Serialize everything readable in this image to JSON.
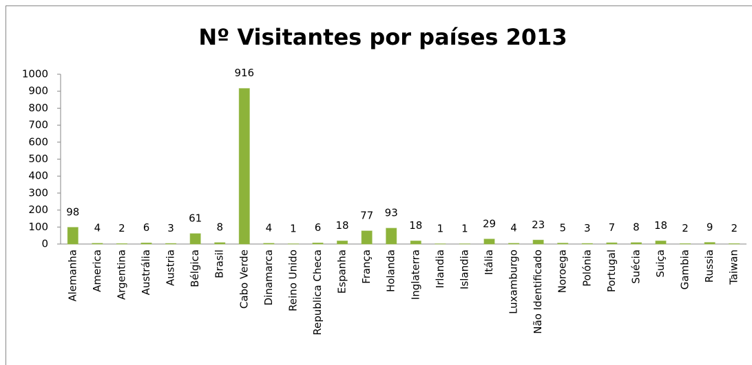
{
  "chart_data": {
    "type": "bar",
    "title": "Nº Visitantes por países 2013",
    "categories": [
      "Alemanha",
      "America",
      "Argentina",
      "Austrália",
      "Austria",
      "Bélgica",
      "Brasil",
      "Cabo Verde",
      "Dinamarca",
      "Reino Unido",
      "Republica Checa",
      "Espanha",
      "França",
      "Holanda",
      "Inglaterra",
      "Irlandia",
      "Islandia",
      "Itália",
      "Luxamburgo",
      "Não Identificado",
      "Noroega",
      "Polónia",
      "Portugal",
      "Suécia",
      "Suiça",
      "Gambia",
      "Russia",
      "Taiwan"
    ],
    "values": [
      98,
      4,
      2,
      6,
      3,
      61,
      8,
      916,
      4,
      1,
      6,
      18,
      77,
      93,
      18,
      1,
      1,
      29,
      4,
      23,
      5,
      3,
      7,
      8,
      18,
      2,
      9,
      2
    ],
    "color": "#8db33a",
    "ylim": [
      0,
      1000
    ],
    "yticks": [
      0,
      100,
      200,
      300,
      400,
      500,
      600,
      700,
      800,
      900,
      1000
    ],
    "grid": false
  }
}
